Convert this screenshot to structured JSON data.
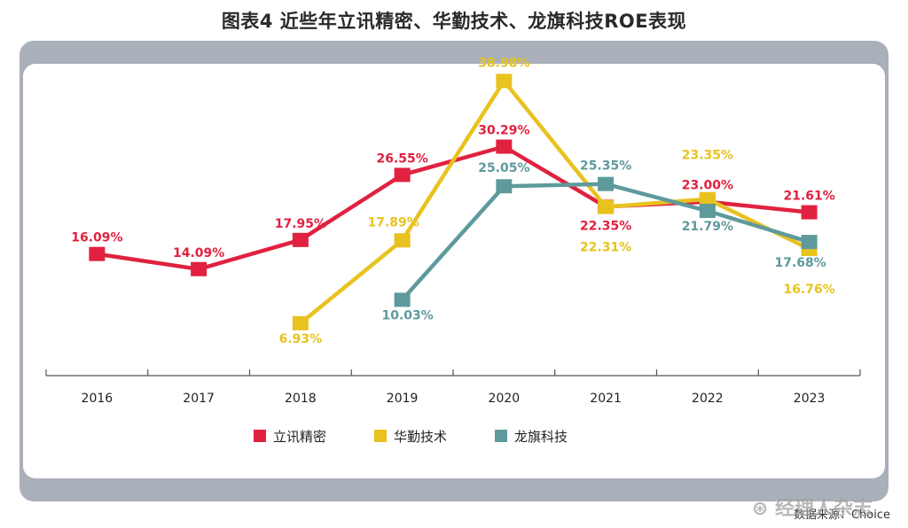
{
  "chart_data": {
    "type": "line",
    "title": "图表4  近些年立讯精密、华勤技术、龙旗科技ROE表现",
    "categories": [
      "2016",
      "2017",
      "2018",
      "2019",
      "2020",
      "2021",
      "2022",
      "2023"
    ],
    "ylim": [
      0,
      45
    ],
    "series": [
      {
        "name": "立讯精密",
        "color": "#e0213f",
        "values": [
          16.09,
          14.09,
          17.95,
          26.55,
          30.29,
          22.35,
          23.0,
          21.61
        ],
        "labels": [
          "16.09%",
          "14.09%",
          "17.95%",
          "26.55%",
          "30.29%",
          "22.35%",
          "23.00%",
          "21.61%"
        ]
      },
      {
        "name": "华勤技术",
        "color": "#e8c21f",
        "values": [
          null,
          null,
          6.93,
          17.89,
          38.98,
          22.31,
          23.35,
          16.76
        ],
        "labels": [
          null,
          null,
          "6.93%",
          "17.89%",
          "38.98%",
          "22.31%",
          "23.35%",
          "16.76%"
        ]
      },
      {
        "name": "龙旗科技",
        "color": "#5e9a9c",
        "values": [
          null,
          null,
          null,
          10.03,
          25.05,
          25.35,
          21.79,
          17.68
        ],
        "labels": [
          null,
          null,
          null,
          "10.03%",
          "25.05%",
          "25.35%",
          "21.79%",
          "17.68%"
        ]
      }
    ],
    "legend": "bottom-center",
    "source": "数据来源：Choice"
  },
  "watermark": "经理人杂志"
}
